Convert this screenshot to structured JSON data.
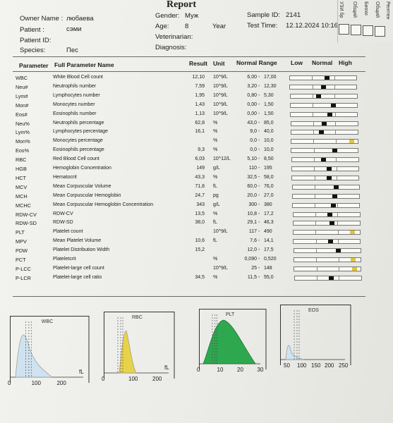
{
  "report": {
    "title": "Report",
    "owner_label": "Owner Name :",
    "owner_value": "любаева",
    "patient_label": "Patient :",
    "patient_value": "сэми",
    "patient_id_label": "Patient ID:",
    "species_label": "Species:",
    "species_value": "Пес",
    "gender_label": "Gender:",
    "gender_value": "Муж",
    "age_label": "Age:",
    "age_value": "8",
    "age_unit": "Year",
    "vet_label": "Veterinarian:",
    "diag_label": "Diagnosis:",
    "sample_label": "Sample ID:",
    "sample_value": "2141",
    "time_label": "Test Time:",
    "time_value": "12.12.2024 10:16"
  },
  "columns": {
    "parameter": "Parameter",
    "full_name": "Full Parameter Name",
    "result": "Result",
    "unit": "Unit",
    "normal_range": "Normal Range",
    "low": "Low",
    "normal": "Normal",
    "high": "High"
  },
  "rows": [
    {
      "code": "WBC",
      "name": "White Blood Cell count",
      "result": "12,10",
      "unit": "10^9/L",
      "low": "6,00",
      "high": "17,00",
      "pos": 0.55,
      "flag": "n"
    },
    {
      "code": "Neu#",
      "name": "Neutrophils number",
      "result": "7,59",
      "unit": "10^9/L",
      "low": "3,20",
      "high": "12,30",
      "pos": 0.5,
      "flag": "n"
    },
    {
      "code": "Lym#",
      "name": "Lymphocytes number",
      "result": "1,95",
      "unit": "10^9/L",
      "low": "0,80",
      "high": "5,30",
      "pos": 0.42,
      "flag": "n"
    },
    {
      "code": "Mon#",
      "name": "Monocytes number",
      "result": "1,43",
      "unit": "10^9/L",
      "low": "0,00",
      "high": "1,50",
      "pos": 0.64,
      "flag": "n"
    },
    {
      "code": "Eos#",
      "name": "Eosinophils number",
      "result": "1,13",
      "unit": "10^9/L",
      "low": "0,00",
      "high": "1,50",
      "pos": 0.58,
      "flag": "n"
    },
    {
      "code": "Neu%",
      "name": "Neutrophils percentage",
      "result": "62,8",
      "unit": "%",
      "low": "43,0",
      "high": "85,0",
      "pos": 0.49,
      "flag": "n"
    },
    {
      "code": "Lym%",
      "name": "Lymphocytes percentage",
      "result": "16,1",
      "unit": "%",
      "low": "9,0",
      "high": "40,0",
      "pos": 0.45,
      "flag": "n"
    },
    {
      "code": "Mon%",
      "name": "Monocytes percentage",
      "result": "",
      "unit": "%",
      "low": "0,0",
      "high": "10,0",
      "pos": 0.9,
      "flag": "y"
    },
    {
      "code": "Eos%",
      "name": "Eosinophils percentage",
      "result": "9,3",
      "unit": "%",
      "low": "0,0",
      "high": "10,0",
      "pos": 0.64,
      "flag": "n"
    },
    {
      "code": "RBC",
      "name": "Red Blood Cell count",
      "result": "6,03",
      "unit": "10^12/L",
      "low": "5,10",
      "high": "8,50",
      "pos": 0.47,
      "flag": "n"
    },
    {
      "code": "HGB",
      "name": "Hemoglobin Concentration",
      "result": "149",
      "unit": "g/L",
      "low": "110",
      "high": "195",
      "pos": 0.55,
      "flag": "n"
    },
    {
      "code": "HCT",
      "name": "Hematocrit",
      "result": "43,3",
      "unit": "%",
      "low": "32,5",
      "high": "58,0",
      "pos": 0.55,
      "flag": "n"
    },
    {
      "code": "MCV",
      "name": "Mean Corpuscular Volume",
      "result": "71,8",
      "unit": "fL",
      "low": "60,0",
      "high": "76,0",
      "pos": 0.65,
      "flag": "n"
    },
    {
      "code": "MCH",
      "name": "Mean Corpuscular Hemoglobin",
      "result": "24,7",
      "unit": "pg",
      "low": "20,0",
      "high": "27,0",
      "pos": 0.63,
      "flag": "n"
    },
    {
      "code": "MCHC",
      "name": "Mean Corpuscular Hemoglobin Concentration",
      "result": "343",
      "unit": "g/L",
      "low": "300",
      "high": "380",
      "pos": 0.6,
      "flag": "n"
    },
    {
      "code": "RDW-CV",
      "name": "RDW-CV",
      "result": "13,5",
      "unit": "%",
      "low": "10,8",
      "high": "17,2",
      "pos": 0.55,
      "flag": "n"
    },
    {
      "code": "RDW-SD",
      "name": "RDW-SD",
      "result": "38,0",
      "unit": "fL",
      "low": "29,1",
      "high": "46,3",
      "pos": 0.58,
      "flag": "n"
    },
    {
      "code": "PLT",
      "name": "Platelet count",
      "result": "",
      "unit": "10^9/L",
      "low": "117",
      "high": "490",
      "pos": 0.88,
      "flag": "y"
    },
    {
      "code": "MPV",
      "name": "Mean Platelet Volume",
      "result": "10,6",
      "unit": "fL",
      "low": "7,6",
      "high": "14,1",
      "pos": 0.55,
      "flag": "n"
    },
    {
      "code": "PDW",
      "name": "Platelet Distribution Width",
      "result": "15,2",
      "unit": "",
      "low": "12,0",
      "high": "17,5",
      "pos": 0.66,
      "flag": "n"
    },
    {
      "code": "PCT",
      "name": "Plateletcrit",
      "result": "",
      "unit": "%",
      "low": "0,090",
      "high": "0,520",
      "pos": 0.88,
      "flag": "y"
    },
    {
      "code": "P-LCC",
      "name": "Platelet-large cell count",
      "result": "",
      "unit": "10^9/L",
      "low": "25",
      "high": "148",
      "pos": 0.9,
      "flag": "y"
    },
    {
      "code": "P-LCR",
      "name": "Platelet-large cell ratio",
      "result": "34,5",
      "unit": "%",
      "low": "11,5",
      "high": "55,0",
      "pos": 0.55,
      "flag": "n"
    }
  ],
  "histograms": [
    {
      "title": "WBC",
      "ticks": [
        "0",
        "100",
        "200"
      ],
      "unit": "fL",
      "color": "#cfe2ef"
    },
    {
      "title": "RBC",
      "ticks": [
        "0",
        "100",
        "200"
      ],
      "unit": "fL",
      "color": "#e8d24a"
    },
    {
      "title": "PLT",
      "ticks": [
        "0",
        "10",
        "20",
        "30"
      ],
      "unit": "",
      "color": "#2ea84f"
    },
    {
      "title": "EOS",
      "ticks": [
        "50",
        "100",
        "150",
        "200",
        "250"
      ],
      "unit": "",
      "color": "#cfe2ef"
    }
  ],
  "side": {
    "a": "УЗИ бр",
    "b": "Общий",
    "c": "Биохи",
    "d": "Общий",
    "e": "Рентген"
  }
}
